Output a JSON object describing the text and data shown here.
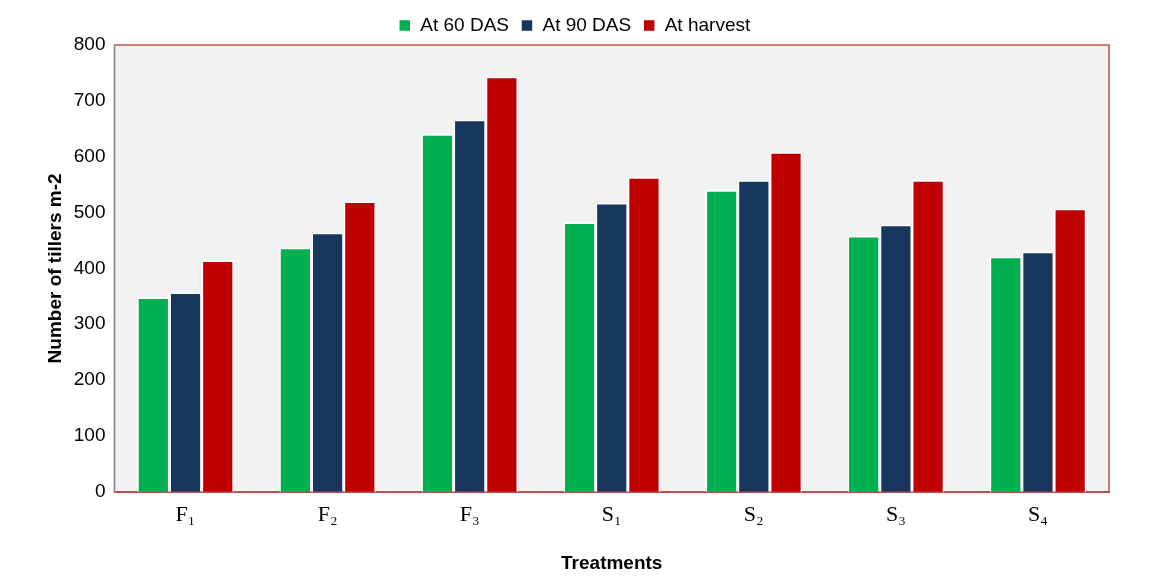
{
  "chart_data": {
    "type": "bar",
    "xlabel": "Treatments",
    "ylabel": "Number of tillers m-2",
    "categories": [
      "F₁",
      "F₂",
      "F₃",
      "S₁",
      "S₂",
      "S₃",
      "S₄"
    ],
    "series": [
      {
        "name": "At 60 DAS",
        "color": "#00b050",
        "values": [
          348,
          437,
          640,
          482,
          540,
          458,
          421
        ]
      },
      {
        "name": "At 90 DAS",
        "color": "#17375e",
        "values": [
          357,
          464,
          666,
          517,
          558,
          478,
          430
        ]
      },
      {
        "name": "At harvest",
        "color": "#c00000",
        "values": [
          414,
          520,
          743,
          563,
          608,
          558,
          507
        ]
      }
    ],
    "ylim": [
      0,
      800
    ],
    "yticks": [
      0,
      100,
      200,
      300,
      400,
      500,
      600,
      700,
      800
    ],
    "grid": false,
    "legend": "top"
  }
}
